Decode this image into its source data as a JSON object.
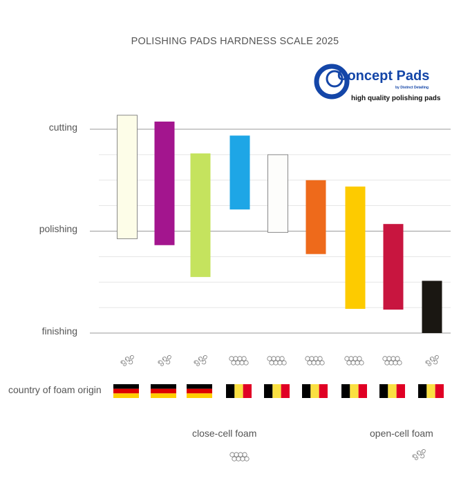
{
  "chart_data": {
    "type": "floating-bar",
    "title": "POLISHING PADS HARDNESS SCALE 2025",
    "y_tick_labels": [
      {
        "label": "cutting",
        "value": 8
      },
      {
        "label": "polishing",
        "value": 4
      },
      {
        "label": "finishing",
        "value": 0
      }
    ],
    "ylim": [
      0,
      8
    ],
    "grid": true,
    "bars": [
      {
        "low": 3.7,
        "high": 8.55,
        "color": "#fdfde8",
        "outline": true,
        "foam": "open-cell",
        "country": "germany"
      },
      {
        "low": 3.45,
        "high": 8.3,
        "color": "#a3158e",
        "outline": false,
        "foam": "open-cell",
        "country": "germany"
      },
      {
        "low": 2.2,
        "high": 7.05,
        "color": "#c5e35e",
        "outline": false,
        "foam": "open-cell",
        "country": "germany"
      },
      {
        "low": 4.85,
        "high": 7.75,
        "color": "#1ea6e6",
        "outline": false,
        "foam": "close-cell",
        "country": "belgium"
      },
      {
        "low": 3.95,
        "high": 7.0,
        "color": "#fdfdfb",
        "outline": true,
        "foam": "close-cell",
        "country": "belgium"
      },
      {
        "low": 3.1,
        "high": 6.0,
        "color": "#ee6a1b",
        "outline": false,
        "foam": "close-cell",
        "country": "belgium"
      },
      {
        "low": 0.95,
        "high": 5.75,
        "color": "#fdcb00",
        "outline": false,
        "foam": "close-cell",
        "country": "belgium"
      },
      {
        "low": 0.92,
        "high": 4.28,
        "color": "#c8153f",
        "outline": false,
        "foam": "close-cell",
        "country": "belgium"
      },
      {
        "low": 0,
        "high": 2.05,
        "color": "#1a1712",
        "outline": false,
        "foam": "open-cell",
        "country": "belgium"
      }
    ]
  },
  "row_label_country": "country of foam origin",
  "legend": {
    "closed": "close-cell foam",
    "open": "open-cell foam"
  },
  "logo": {
    "brand": "Concept Pads",
    "byline": "by Distinct Detailing",
    "tagline": "high quality polishing pads",
    "color": "#1446a8"
  }
}
